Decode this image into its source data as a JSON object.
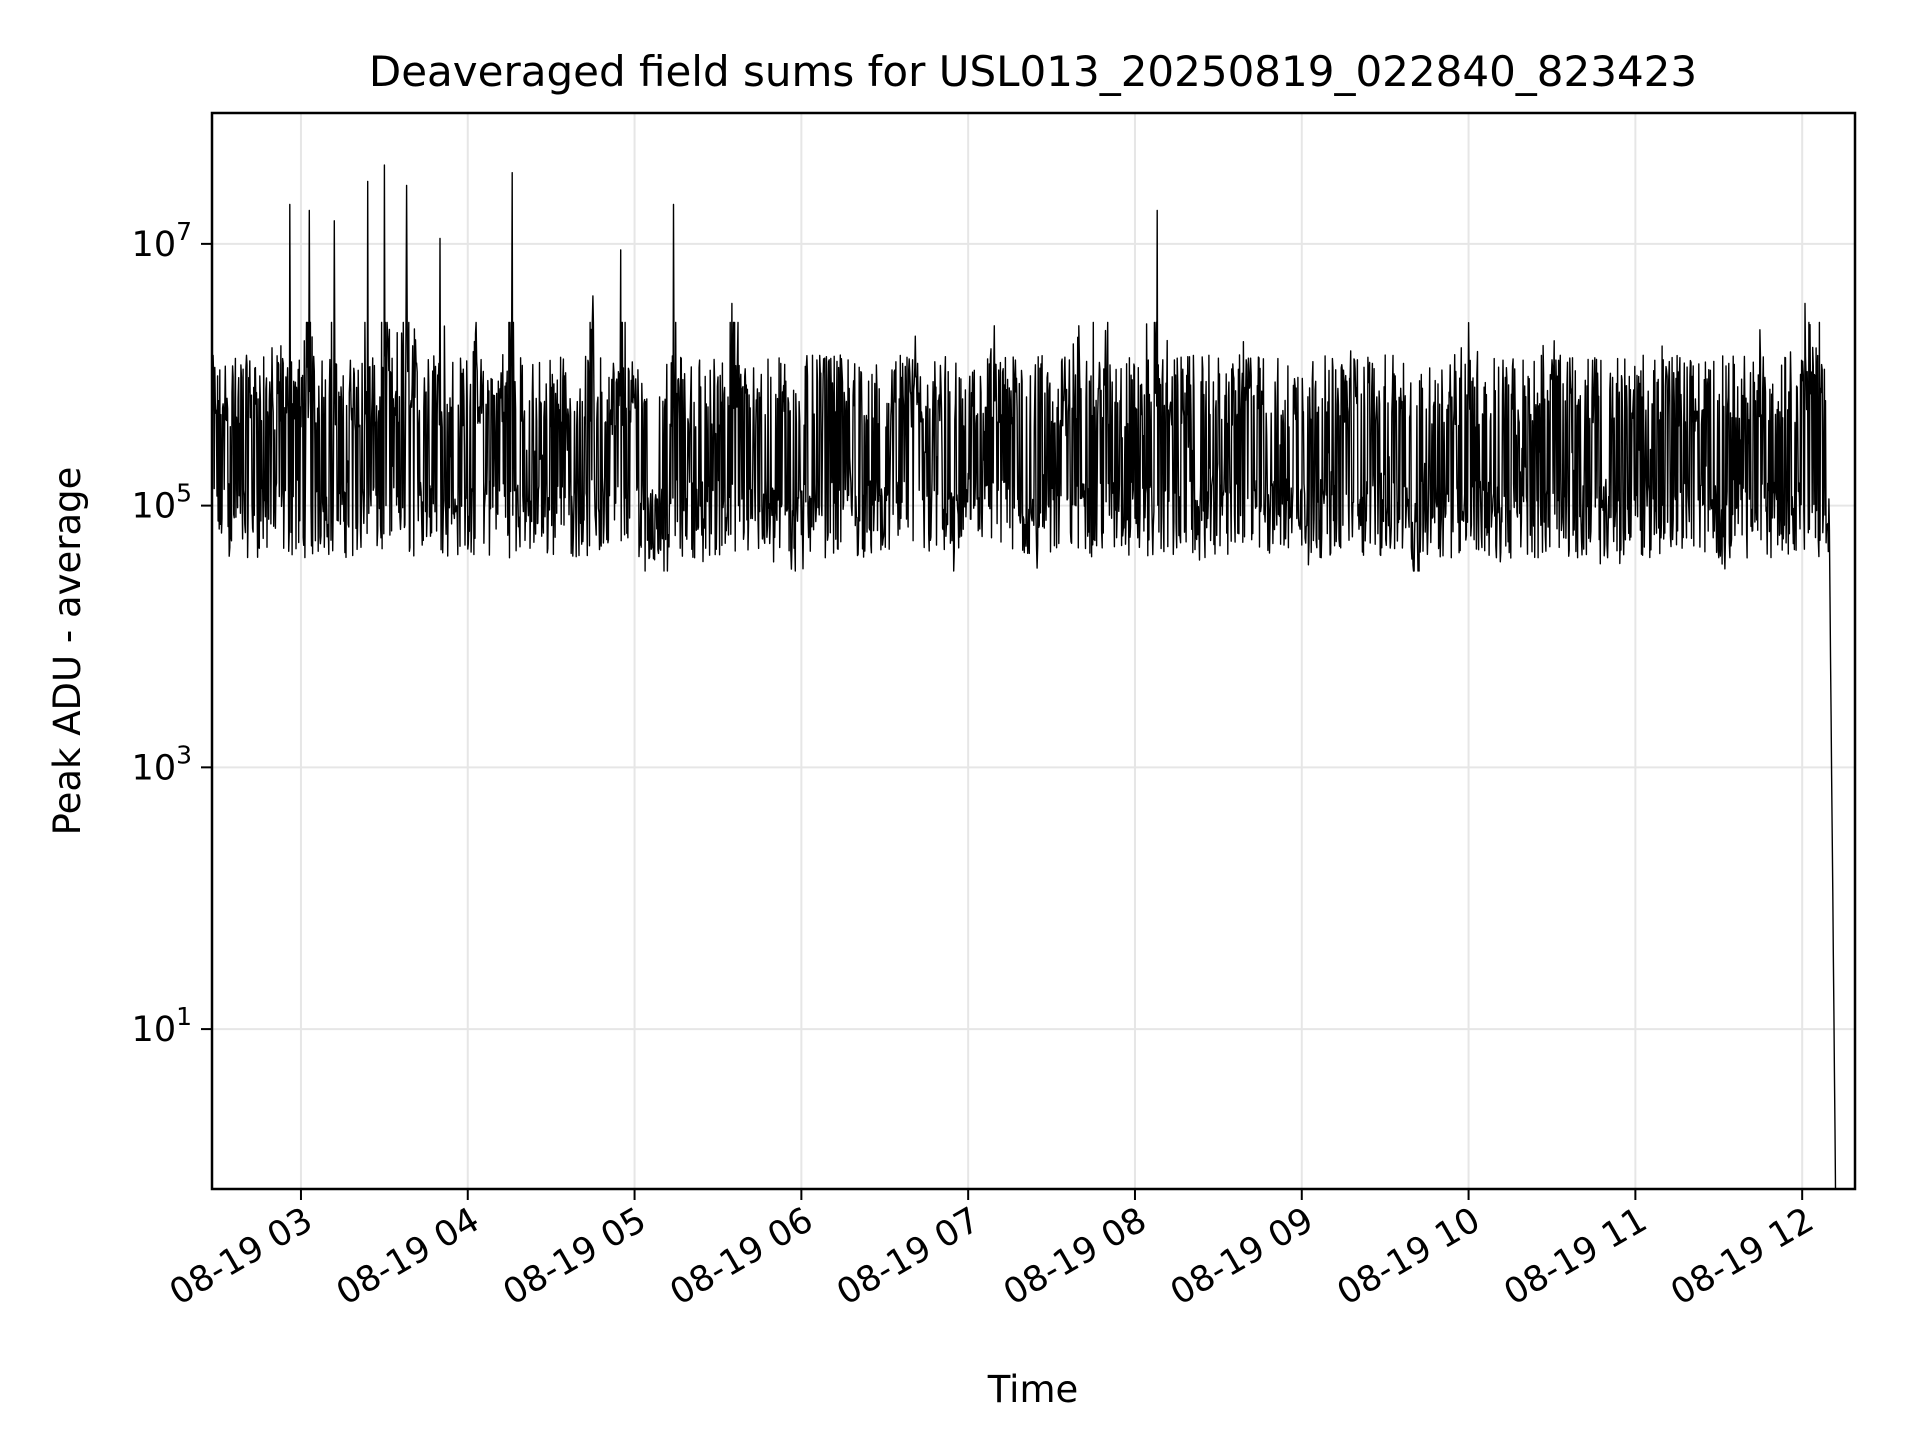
{
  "chart_data": {
    "type": "line",
    "title": "Deaveraged field sums for USL013_20250819_022840_823423",
    "xlabel": "Time",
    "ylabel": "Peak ADU - average",
    "x_ticks": [
      "08-19 03",
      "08-19 04",
      "08-19 05",
      "08-19 06",
      "08-19 07",
      "08-19 08",
      "08-19 09",
      "08-19 10",
      "08-19 11",
      "08-19 12"
    ],
    "xlim": [
      "2025-08-19 02:28",
      "2025-08-19 12:19"
    ],
    "y_scale": "log",
    "ylim": [
      0.6,
      100000000
    ],
    "y_ticks": [
      {
        "base": "10",
        "exp": "1",
        "value": 10
      },
      {
        "base": "10",
        "exp": "3",
        "value": 1000
      },
      {
        "base": "10",
        "exp": "5",
        "value": 100000
      },
      {
        "base": "10",
        "exp": "7",
        "value": 10000000
      }
    ],
    "grid": true,
    "series": [
      {
        "color": "#000000",
        "points": [
          [
            "2025-08-19 02:28",
            450000
          ],
          [
            "2025-08-19 02:32",
            600000
          ],
          [
            "2025-08-19 02:37",
            380000
          ],
          [
            "2025-08-19 02:43",
            800000
          ],
          [
            "2025-08-19 02:48",
            520000
          ],
          [
            "2025-08-19 02:52",
            1200000
          ],
          [
            "2025-08-19 02:55",
            750000
          ],
          [
            "2025-08-19 02:56",
            20000000
          ],
          [
            "2025-08-19 02:57",
            600000
          ],
          [
            "2025-08-19 03:00",
            400000
          ],
          [
            "2025-08-19 03:03",
            18000000
          ],
          [
            "2025-08-19 03:05",
            300000
          ],
          [
            "2025-08-19 03:08",
            90000
          ],
          [
            "2025-08-19 03:12",
            15000000
          ],
          [
            "2025-08-19 03:15",
            150000
          ],
          [
            "2025-08-19 03:20",
            800000
          ],
          [
            "2025-08-19 03:24",
            30000000
          ],
          [
            "2025-08-19 03:27",
            120000
          ],
          [
            "2025-08-19 03:30",
            40000000
          ],
          [
            "2025-08-19 03:33",
            200000
          ],
          [
            "2025-08-19 03:38",
            28000000
          ],
          [
            "2025-08-19 03:43",
            150000
          ],
          [
            "2025-08-19 03:50",
            11000000
          ],
          [
            "2025-08-19 03:55",
            90000
          ],
          [
            "2025-08-19 04:02",
            1500000
          ],
          [
            "2025-08-19 04:10",
            200000
          ],
          [
            "2025-08-19 04:16",
            35000000
          ],
          [
            "2025-08-19 04:20",
            90000
          ],
          [
            "2025-08-19 04:30",
            800000
          ],
          [
            "2025-08-19 04:38",
            60000
          ],
          [
            "2025-08-19 04:45",
            4000000
          ],
          [
            "2025-08-19 04:50",
            55000
          ],
          [
            "2025-08-19 04:55",
            9000000
          ],
          [
            "2025-08-19 05:02",
            50000
          ],
          [
            "2025-08-19 05:12",
            60000
          ],
          [
            "2025-08-19 05:14",
            20000000
          ],
          [
            "2025-08-19 05:16",
            800000
          ],
          [
            "2025-08-19 05:25",
            70000
          ],
          [
            "2025-08-19 05:35",
            3500000
          ],
          [
            "2025-08-19 05:45",
            90000
          ],
          [
            "2025-08-19 06:00",
            60000
          ],
          [
            "2025-08-19 06:10",
            1300000
          ],
          [
            "2025-08-19 06:25",
            50000
          ],
          [
            "2025-08-19 06:40",
            1300000
          ],
          [
            "2025-08-19 06:55",
            45000
          ],
          [
            "2025-08-19 07:10",
            1200000
          ],
          [
            "2025-08-19 07:25",
            50000
          ],
          [
            "2025-08-19 07:40",
            1300000
          ],
          [
            "2025-08-19 07:50",
            1400000
          ],
          [
            "2025-08-19 08:00",
            80000
          ],
          [
            "2025-08-19 08:08",
            18000000
          ],
          [
            "2025-08-19 08:10",
            1300000
          ],
          [
            "2025-08-19 08:25",
            60000
          ],
          [
            "2025-08-19 08:40",
            1300000
          ],
          [
            "2025-08-19 09:00",
            50000
          ],
          [
            "2025-08-19 09:20",
            1300000
          ],
          [
            "2025-08-19 09:40",
            35000
          ],
          [
            "2025-08-19 10:00",
            2500000
          ],
          [
            "2025-08-19 10:10",
            40000
          ],
          [
            "2025-08-19 10:30",
            1300000
          ],
          [
            "2025-08-19 10:50",
            40000
          ],
          [
            "2025-08-19 11:10",
            1300000
          ],
          [
            "2025-08-19 11:30",
            40000
          ],
          [
            "2025-08-19 11:45",
            1300000
          ],
          [
            "2025-08-19 12:00",
            900000
          ],
          [
            "2025-08-19 12:01",
            3500000
          ],
          [
            "2025-08-19 12:05",
            1600000
          ],
          [
            "2025-08-19 12:08",
            1100000
          ],
          [
            "2025-08-19 12:10",
            20000
          ],
          [
            "2025-08-19 12:12",
            0.6
          ]
        ]
      }
    ]
  }
}
